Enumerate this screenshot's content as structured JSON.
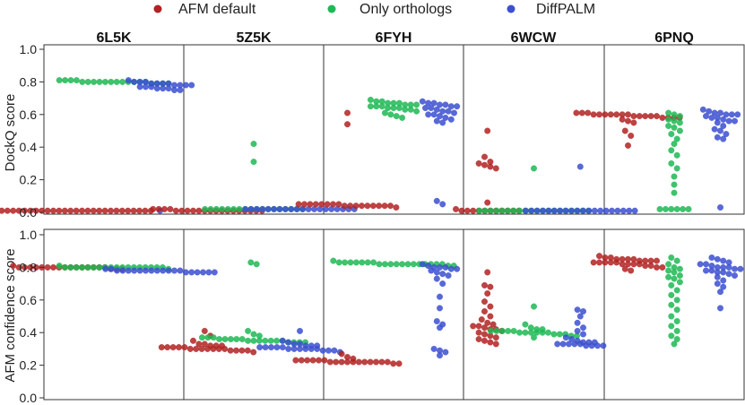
{
  "legend": [
    {
      "label": "AFM default",
      "color": "#b22222"
    },
    {
      "label": "Only orthologs",
      "color": "#1db954"
    },
    {
      "label": "DiffPALM",
      "color": "#3b4fd0"
    }
  ],
  "chart_data": {
    "type": "scatter",
    "subtype": "swarm",
    "panels": [
      "6L5K",
      "5Z5K",
      "6FYH",
      "6WCW",
      "6PNQ"
    ],
    "methods": [
      "AFM default",
      "Only orthologs",
      "DiffPALM"
    ],
    "rows": [
      {
        "ylabel": "DockQ score",
        "ylim": [
          0,
          1.0
        ],
        "yticks": [
          "0.0",
          "0.2",
          "0.4",
          "0.6",
          "0.8",
          "1.0"
        ],
        "series": {
          "6L5K": {
            "AFM default": [
              0.01,
              0.01,
              0.01,
              0.01,
              0.01,
              0.01,
              0.01,
              0.01,
              0.01,
              0.01,
              0.01,
              0.01,
              0.01,
              0.01,
              0.01,
              0.01,
              0.01,
              0.01,
              0.01,
              0.01,
              0.01,
              0.01,
              0.01,
              0.01,
              0.01,
              0.01,
              0.01,
              0.01,
              0.01,
              0.01
            ],
            "Only orthologs": [
              0.8,
              0.8,
              0.8,
              0.79,
              0.81,
              0.8,
              0.8,
              0.79,
              0.81,
              0.8,
              0.8,
              0.8,
              0.79,
              0.81,
              0.8,
              0.8,
              0.8,
              0.79,
              0.8,
              0.81
            ],
            "DiffPALM": [
              0.81,
              0.8,
              0.8,
              0.79,
              0.79,
              0.78,
              0.78,
              0.77,
              0.77,
              0.76,
              0.76,
              0.75,
              0.8,
              0.79,
              0.78,
              0.77,
              0.76,
              0.75,
              0.79,
              0.78,
              0.01
            ]
          },
          "5Z5K": {
            "AFM default": [
              0.01,
              0.01,
              0.01,
              0.02,
              0.01,
              0.01,
              0.01,
              0.02,
              0.01,
              0.01,
              0.01,
              0.01,
              0.02,
              0.01,
              0.01,
              0.01,
              0.01,
              0.02,
              0.01,
              0.01
            ],
            "Only orthologs": [
              0.42,
              0.31,
              0.02,
              0.02,
              0.02,
              0.02,
              0.02,
              0.02,
              0.02,
              0.02,
              0.02,
              0.02,
              0.02,
              0.02,
              0.02,
              0.02,
              0.02,
              0.02,
              0.02,
              0.02
            ],
            "DiffPALM": [
              0.02,
              0.02,
              0.02,
              0.02,
              0.02,
              0.02,
              0.02,
              0.02,
              0.02,
              0.02,
              0.02,
              0.02,
              0.02,
              0.02,
              0.02,
              0.02,
              0.02,
              0.02,
              0.02,
              0.02
            ]
          },
          "6FYH": {
            "AFM default": [
              0.61,
              0.54,
              0.05,
              0.05,
              0.05,
              0.04,
              0.04,
              0.04,
              0.05,
              0.04,
              0.04,
              0.03,
              0.05,
              0.04,
              0.04,
              0.05,
              0.04,
              0.05,
              0.04,
              0.05
            ],
            "Only orthologs": [
              0.69,
              0.68,
              0.68,
              0.67,
              0.67,
              0.66,
              0.66,
              0.65,
              0.65,
              0.64,
              0.64,
              0.63,
              0.63,
              0.62,
              0.61,
              0.6,
              0.59,
              0.58,
              0.67,
              0.66,
              0.65,
              0.64
            ],
            "DiffPALM": [
              0.68,
              0.67,
              0.67,
              0.66,
              0.65,
              0.64,
              0.63,
              0.62,
              0.61,
              0.6,
              0.59,
              0.58,
              0.57,
              0.56,
              0.55,
              0.66,
              0.65,
              0.64,
              0.62,
              0.6,
              0.07,
              0.05
            ]
          },
          "6WCW": {
            "AFM default": [
              0.5,
              0.34,
              0.31,
              0.3,
              0.29,
              0.28,
              0.27,
              0.06,
              0.02,
              0.01,
              0.01,
              0.01,
              0.01,
              0.01,
              0.01,
              0.01,
              0.01,
              0.01,
              0.01,
              0.01
            ],
            "Only orthologs": [
              0.27,
              0.01,
              0.01,
              0.01,
              0.01,
              0.01,
              0.01,
              0.01,
              0.01,
              0.01,
              0.01,
              0.01,
              0.01,
              0.01,
              0.01,
              0.01,
              0.01,
              0.01,
              0.01,
              0.01,
              0.01
            ],
            "DiffPALM": [
              0.28,
              0.01,
              0.01,
              0.01,
              0.01,
              0.01,
              0.01,
              0.01,
              0.01,
              0.01,
              0.01,
              0.01,
              0.01,
              0.01,
              0.01,
              0.01,
              0.01,
              0.01,
              0.01,
              0.01,
              0.01
            ]
          },
          "6PNQ": {
            "AFM default": [
              0.61,
              0.61,
              0.6,
              0.6,
              0.6,
              0.6,
              0.6,
              0.6,
              0.59,
              0.59,
              0.59,
              0.59,
              0.58,
              0.58,
              0.58,
              0.57,
              0.61,
              0.6,
              0.59,
              0.58,
              0.56,
              0.55,
              0.5,
              0.47,
              0.41
            ],
            "Only orthologs": [
              0.61,
              0.6,
              0.59,
              0.57,
              0.56,
              0.55,
              0.53,
              0.52,
              0.5,
              0.48,
              0.45,
              0.42,
              0.38,
              0.35,
              0.3,
              0.27,
              0.22,
              0.17,
              0.12,
              0.02,
              0.02,
              0.02,
              0.02,
              0.02,
              0.02
            ],
            "DiffPALM": [
              0.63,
              0.62,
              0.61,
              0.6,
              0.6,
              0.59,
              0.58,
              0.57,
              0.56,
              0.55,
              0.53,
              0.51,
              0.5,
              0.48,
              0.46,
              0.45,
              0.61,
              0.6,
              0.58,
              0.56,
              0.03
            ]
          }
        }
      },
      {
        "ylabel": "AFM confidence score",
        "ylim": [
          0,
          1.0
        ],
        "yticks": [
          "0.0",
          "0.2",
          "0.4",
          "0.6",
          "0.8",
          "1.0"
        ],
        "series": {
          "6L5K": {
            "AFM default": [
              0.8,
              0.8,
              0.8,
              0.8,
              0.8,
              0.8,
              0.8,
              0.8,
              0.79,
              0.79,
              0.8,
              0.8,
              0.8,
              0.81,
              0.8,
              0.8,
              0.8,
              0.8,
              0.79,
              0.8
            ],
            "Only orthologs": [
              0.8,
              0.8,
              0.8,
              0.8,
              0.8,
              0.8,
              0.8,
              0.8,
              0.81,
              0.8,
              0.8,
              0.8,
              0.8,
              0.8,
              0.8,
              0.79,
              0.8,
              0.8,
              0.8,
              0.8
            ],
            "DiffPALM": [
              0.79,
              0.78,
              0.78,
              0.78,
              0.78,
              0.78,
              0.78,
              0.78,
              0.77,
              0.77,
              0.77,
              0.77,
              0.78,
              0.78,
              0.77,
              0.77,
              0.78,
              0.78,
              0.79,
              0.78
            ]
          },
          "5Z5K": {
            "AFM default": [
              0.41,
              0.38,
              0.35,
              0.33,
              0.33,
              0.32,
              0.32,
              0.31,
              0.31,
              0.31,
              0.3,
              0.3,
              0.3,
              0.3,
              0.29,
              0.29,
              0.29,
              0.28,
              0.32,
              0.31,
              0.3,
              0.3,
              0.29,
              0.31,
              0.3
            ],
            "Only orthologs": [
              0.83,
              0.82,
              0.41,
              0.39,
              0.38,
              0.37,
              0.37,
              0.36,
              0.36,
              0.36,
              0.35,
              0.35,
              0.35,
              0.35,
              0.34,
              0.34,
              0.34,
              0.36,
              0.35,
              0.35,
              0.34,
              0.37,
              0.36,
              0.35
            ],
            "DiffPALM": [
              0.41,
              0.35,
              0.34,
              0.33,
              0.33,
              0.32,
              0.32,
              0.31,
              0.31,
              0.31,
              0.3,
              0.3,
              0.3,
              0.29,
              0.29,
              0.28,
              0.32,
              0.31,
              0.3,
              0.3,
              0.29,
              0.31,
              0.3
            ]
          },
          "6FYH": {
            "AFM default": [
              0.27,
              0.25,
              0.24,
              0.23,
              0.23,
              0.23,
              0.23,
              0.22,
              0.22,
              0.22,
              0.22,
              0.22,
              0.22,
              0.22,
              0.21,
              0.21,
              0.23,
              0.22,
              0.22,
              0.22,
              0.23,
              0.22
            ],
            "Only orthologs": [
              0.84,
              0.83,
              0.83,
              0.83,
              0.83,
              0.82,
              0.82,
              0.82,
              0.82,
              0.82,
              0.82,
              0.81,
              0.81,
              0.83,
              0.82,
              0.82,
              0.83,
              0.82,
              0.82,
              0.83,
              0.82,
              0.82
            ],
            "DiffPALM": [
              0.82,
              0.81,
              0.8,
              0.8,
              0.79,
              0.79,
              0.78,
              0.77,
              0.76,
              0.75,
              0.73,
              0.7,
              0.62,
              0.55,
              0.47,
              0.45,
              0.43,
              0.3,
              0.29,
              0.28,
              0.26,
              0.8
            ]
          },
          "6WCW": {
            "AFM default": [
              0.77,
              0.69,
              0.68,
              0.64,
              0.59,
              0.56,
              0.53,
              0.5,
              0.48,
              0.46,
              0.45,
              0.44,
              0.43,
              0.42,
              0.41,
              0.4,
              0.39,
              0.38,
              0.37,
              0.36,
              0.35,
              0.34,
              0.33,
              0.44,
              0.42
            ],
            "Only orthologs": [
              0.56,
              0.45,
              0.43,
              0.42,
              0.42,
              0.41,
              0.41,
              0.41,
              0.4,
              0.4,
              0.4,
              0.4,
              0.39,
              0.39,
              0.39,
              0.38,
              0.38,
              0.37,
              0.41,
              0.4,
              0.41,
              0.4
            ],
            "DiffPALM": [
              0.54,
              0.53,
              0.5,
              0.46,
              0.43,
              0.41,
              0.39,
              0.37,
              0.36,
              0.35,
              0.34,
              0.34,
              0.33,
              0.33,
              0.33,
              0.32,
              0.32,
              0.32,
              0.33,
              0.34,
              0.33,
              0.32
            ]
          },
          "6PNQ": {
            "AFM default": [
              0.87,
              0.86,
              0.86,
              0.85,
              0.85,
              0.85,
              0.84,
              0.84,
              0.84,
              0.83,
              0.83,
              0.83,
              0.83,
              0.82,
              0.82,
              0.82,
              0.81,
              0.81,
              0.8,
              0.8,
              0.79,
              0.78,
              0.84,
              0.83,
              0.82,
              0.85
            ],
            "Only orthologs": [
              0.86,
              0.84,
              0.82,
              0.8,
              0.79,
              0.77,
              0.75,
              0.73,
              0.71,
              0.69,
              0.66,
              0.63,
              0.6,
              0.57,
              0.54,
              0.5,
              0.47,
              0.44,
              0.41,
              0.38,
              0.36,
              0.33,
              0.78,
              0.74
            ],
            "DiffPALM": [
              0.86,
              0.85,
              0.84,
              0.83,
              0.82,
              0.81,
              0.8,
              0.8,
              0.79,
              0.78,
              0.78,
              0.77,
              0.77,
              0.76,
              0.75,
              0.74,
              0.72,
              0.7,
              0.68,
              0.65,
              0.55,
              0.82,
              0.8,
              0.79
            ]
          }
        }
      }
    ]
  }
}
